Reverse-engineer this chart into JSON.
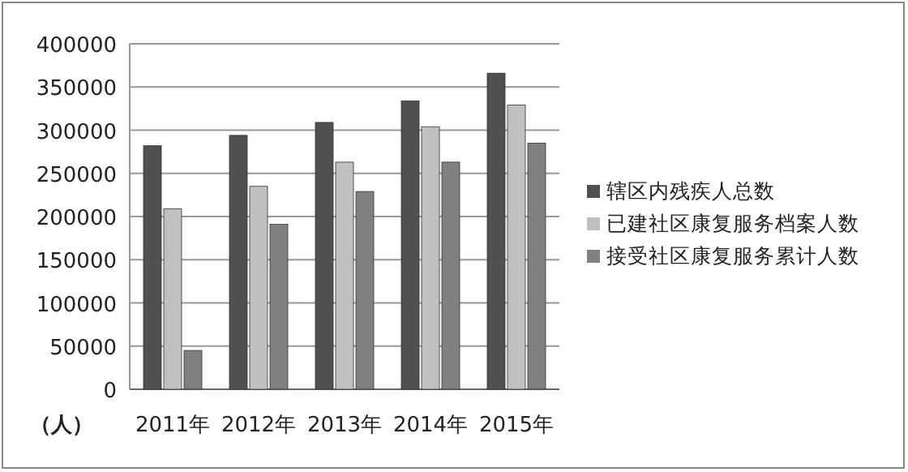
{
  "chart_data": {
    "type": "bar",
    "ylabel": "（人）",
    "categories": [
      "2011年",
      "2012年",
      "2013年",
      "2014年",
      "2015年"
    ],
    "series": [
      {
        "name": "辖区内残疾人总数",
        "color": "#505050",
        "values": [
          282000,
          294000,
          309000,
          334000,
          366000
        ]
      },
      {
        "name": "已建社区康复服务档案人数",
        "color": "#c0c0c0",
        "values": [
          209000,
          235000,
          263000,
          304000,
          329000
        ]
      },
      {
        "name": "接受社区康复服务累计人数",
        "color": "#808080",
        "values": [
          45000,
          191000,
          229000,
          263000,
          285000
        ]
      }
    ],
    "ylim": [
      0,
      400000
    ],
    "yticks": [
      0,
      50000,
      100000,
      150000,
      200000,
      250000,
      300000,
      350000,
      400000
    ],
    "grid": "y",
    "legend": "right"
  }
}
